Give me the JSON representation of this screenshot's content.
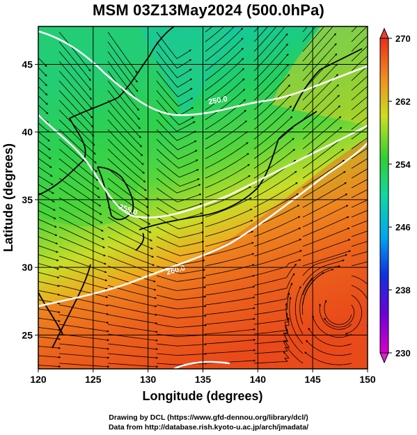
{
  "title": "MSM 03Z13May2024 (500.0hPa)",
  "xlabel": "Longitude (degrees)",
  "ylabel": "Latitude  (degrees)",
  "x_ticks": [
    "120",
    "125",
    "130",
    "135",
    "140",
    "145",
    "150"
  ],
  "y_ticks": [
    "25",
    "30",
    "35",
    "40",
    "45"
  ],
  "colorbar": {
    "ticks": [
      "230",
      "238",
      "246",
      "254",
      "262",
      "270"
    ],
    "min": 230,
    "max": 270
  },
  "contour_labels": [
    "250.0",
    "255.0",
    "260.0"
  ],
  "footer_line1": "Drawing by DCL (https://www.gfd-dennou.org/library/dcl/)",
  "footer_line2": "Data from http://database.rish.kyoto-u.ac.jp/arch/jmadata/",
  "map_extent": {
    "lon": [
      120,
      150
    ],
    "lat": [
      22.5,
      47.8
    ]
  },
  "colors": {
    "warm": "#e8411e",
    "mid": "#3ed13b",
    "cold": "#10c8b8",
    "contour": "#ffffff",
    "streamline": "#000000"
  }
}
